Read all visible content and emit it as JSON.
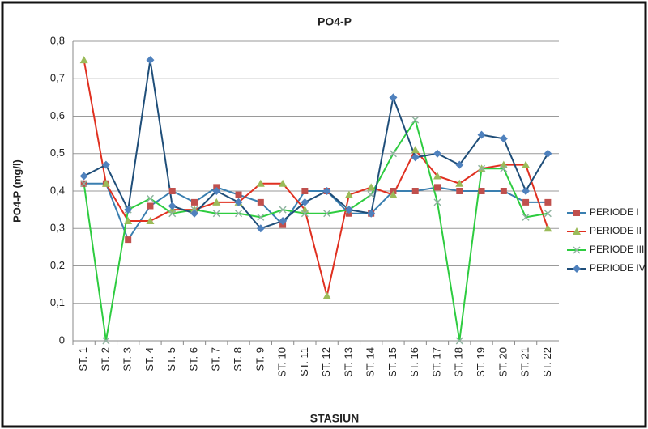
{
  "chart_data": {
    "type": "line",
    "title": "PO4-P",
    "x_label": "STASIUN",
    "y_label": "PO4-P (mg/l)",
    "categories": [
      "ST. 1",
      "ST. 2",
      "ST. 3",
      "ST. 4",
      "ST. 5",
      "ST. 6",
      "ST. 7",
      "ST. 8",
      "ST. 9",
      "ST. 10",
      "ST. 11",
      "ST. 12",
      "ST. 13",
      "ST. 14",
      "ST. 15",
      "ST. 16",
      "ST. 17",
      "ST. 18",
      "ST. 19",
      "ST. 20",
      "ST. 21",
      "ST. 22"
    ],
    "series": [
      {
        "name": "PERIODE I",
        "color": "#3a7fb0",
        "marker_color": "#c0504d",
        "marker": "square",
        "values": [
          0.42,
          0.42,
          0.27,
          0.36,
          0.4,
          0.37,
          0.41,
          0.39,
          0.37,
          0.31,
          0.4,
          0.4,
          0.34,
          0.34,
          0.4,
          0.4,
          0.41,
          0.4,
          0.4,
          0.4,
          0.37,
          0.37
        ]
      },
      {
        "name": "PERIODE II",
        "color": "#e03020",
        "marker_color": "#9bbb59",
        "marker": "triangle",
        "values": [
          0.75,
          0.42,
          0.32,
          0.32,
          0.35,
          0.35,
          0.37,
          0.37,
          0.42,
          0.42,
          0.35,
          0.12,
          0.39,
          0.41,
          0.39,
          0.51,
          0.44,
          0.42,
          0.46,
          0.47,
          0.47,
          0.3
        ]
      },
      {
        "name": "PERIODE III",
        "color": "#2ecc40",
        "marker_color": "#8fb3a0",
        "marker": "x",
        "values": [
          0.42,
          0,
          0.35,
          0.38,
          0.34,
          0.35,
          0.34,
          0.34,
          0.33,
          0.35,
          0.34,
          0.34,
          0.35,
          0.39,
          0.5,
          0.59,
          0.37,
          0,
          0.46,
          0.46,
          0.33,
          0.34
        ]
      },
      {
        "name": "PERIODE IV",
        "color": "#1f4e79",
        "marker_color": "#4f81bd",
        "marker": "diamond",
        "values": [
          0.44,
          0.47,
          0.35,
          0.75,
          0.36,
          0.34,
          0.4,
          0.37,
          0.3,
          0.32,
          0.37,
          0.4,
          0.35,
          0.34,
          0.65,
          0.49,
          0.5,
          0.47,
          0.55,
          0.54,
          0.4,
          0.5
        ]
      }
    ],
    "ylim": [
      0,
      0.8
    ],
    "yticks": [
      0,
      {
        "value": 0.1,
        "label": "0,1"
      },
      {
        "value": 0.2,
        "label": "0,2"
      },
      {
        "value": 0.3,
        "label": "0,3"
      },
      {
        "value": 0.4,
        "label": "0,4"
      },
      {
        "value": 0.5,
        "label": "0,5"
      },
      {
        "value": 0.6,
        "label": "0,6"
      },
      {
        "value": 0.7,
        "label": "0,7"
      },
      {
        "value": 0.8,
        "label": "0,8"
      }
    ],
    "grid": true,
    "legend": "right"
  }
}
